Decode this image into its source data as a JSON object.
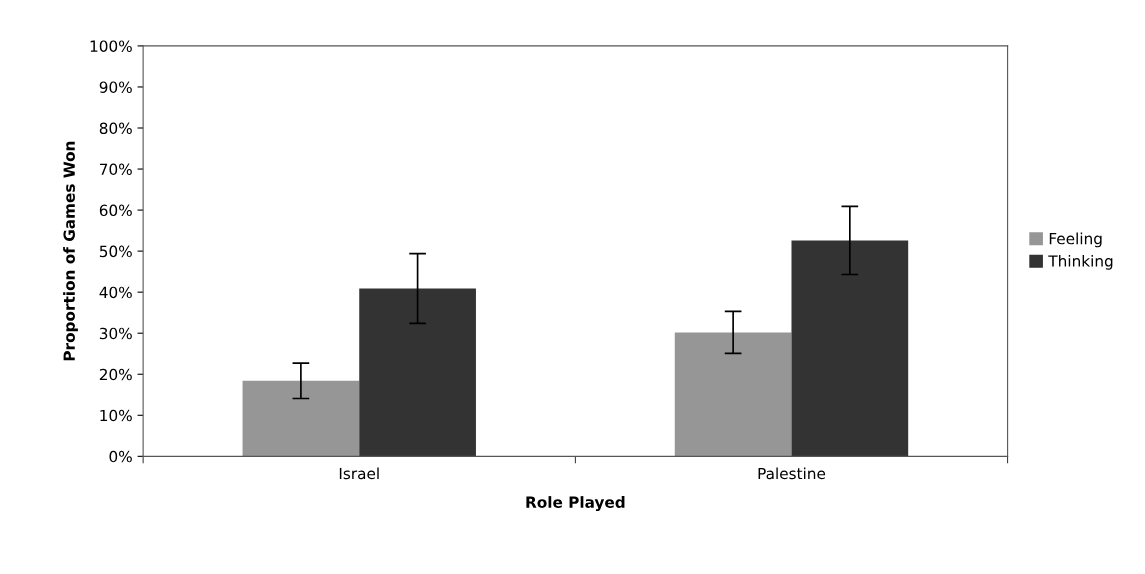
{
  "chart_data": {
    "type": "bar",
    "xlabel": "Role Played",
    "ylabel": "Proportion of Games Won",
    "categories": [
      "Israel",
      "Palestine"
    ],
    "series": [
      {
        "name": "Feeling",
        "color": "#969696",
        "values": [
          18.4,
          30.2
        ],
        "errors": [
          4.3,
          5.1
        ]
      },
      {
        "name": "Thinking",
        "color": "#333333",
        "values": [
          40.9,
          52.6
        ],
        "errors": [
          8.5,
          8.3
        ]
      }
    ],
    "ylim": [
      0,
      100
    ],
    "yticks": [
      {
        "value": 0,
        "label": "0%"
      },
      {
        "value": 10,
        "label": "10%"
      },
      {
        "value": 20,
        "label": "20%"
      },
      {
        "value": 30,
        "label": "30%"
      },
      {
        "value": 40,
        "label": "40%"
      },
      {
        "value": 50,
        "label": "50%"
      },
      {
        "value": 60,
        "label": "60%"
      },
      {
        "value": 70,
        "label": "70%"
      },
      {
        "value": 80,
        "label": "80%"
      },
      {
        "value": 90,
        "label": "90%"
      },
      {
        "value": 100,
        "label": "100%"
      }
    ],
    "grid": false,
    "legend": "right"
  }
}
